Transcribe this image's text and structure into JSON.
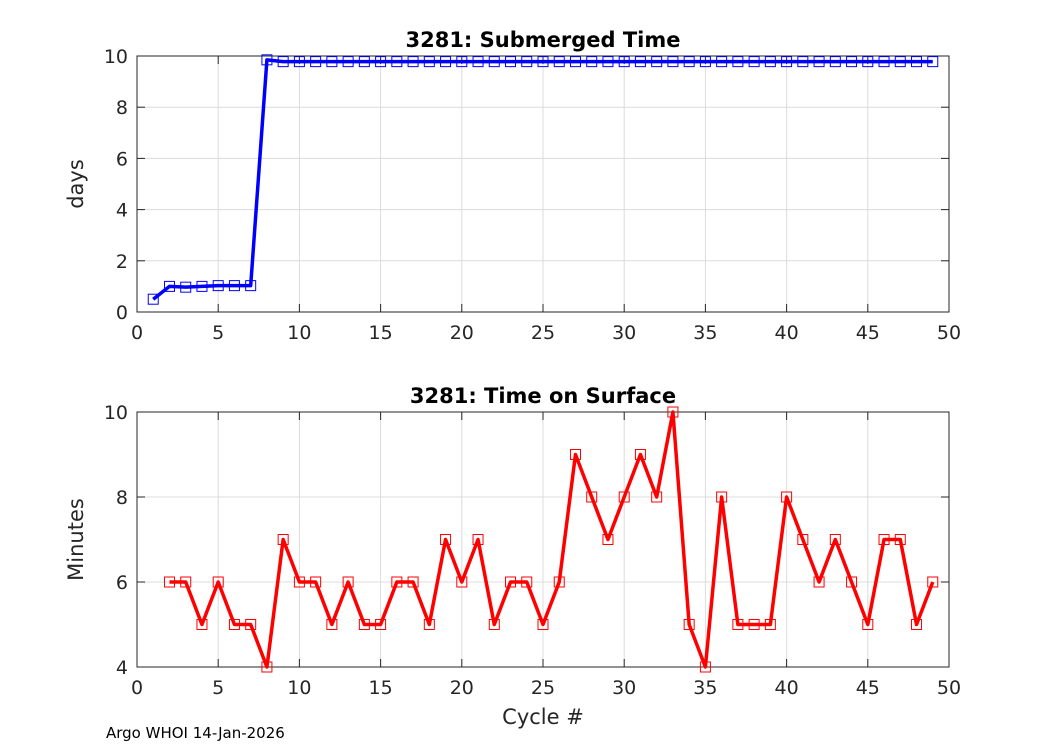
{
  "chart_data": [
    {
      "type": "line",
      "title": "3281: Submerged Time",
      "xlabel": "",
      "ylabel": "days",
      "xlim": [
        0,
        50
      ],
      "ylim": [
        0,
        10
      ],
      "xticks": [
        0,
        5,
        10,
        15,
        20,
        25,
        30,
        35,
        40,
        45,
        50
      ],
      "yticks": [
        0,
        2,
        4,
        6,
        8,
        10
      ],
      "grid": true,
      "color": "#0000ff",
      "marker": "square",
      "x": [
        1,
        2,
        3,
        4,
        5,
        6,
        7,
        8,
        9,
        10,
        11,
        12,
        13,
        14,
        15,
        16,
        17,
        18,
        19,
        20,
        21,
        22,
        23,
        24,
        25,
        26,
        27,
        28,
        29,
        30,
        31,
        32,
        33,
        34,
        35,
        36,
        37,
        38,
        39,
        40,
        41,
        42,
        43,
        44,
        45,
        46,
        47,
        48,
        49
      ],
      "y": [
        0.5,
        1.0,
        0.97,
        1.0,
        1.03,
        1.03,
        1.03,
        9.85,
        9.78,
        9.78,
        9.78,
        9.78,
        9.78,
        9.78,
        9.78,
        9.78,
        9.78,
        9.78,
        9.78,
        9.78,
        9.78,
        9.78,
        9.78,
        9.78,
        9.78,
        9.78,
        9.78,
        9.78,
        9.78,
        9.78,
        9.78,
        9.78,
        9.78,
        9.78,
        9.78,
        9.78,
        9.78,
        9.78,
        9.78,
        9.78,
        9.78,
        9.78,
        9.78,
        9.78,
        9.78,
        9.78,
        9.78,
        9.78,
        9.78
      ]
    },
    {
      "type": "line",
      "title": "3281: Time on Surface",
      "xlabel": "Cycle #",
      "ylabel": "Minutes",
      "xlim": [
        0,
        50
      ],
      "ylim": [
        4,
        10
      ],
      "xticks": [
        0,
        5,
        10,
        15,
        20,
        25,
        30,
        35,
        40,
        45,
        50
      ],
      "yticks": [
        4,
        6,
        8,
        10
      ],
      "grid": true,
      "color": "#ff0000",
      "marker": "square",
      "x": [
        2,
        3,
        4,
        5,
        6,
        7,
        8,
        9,
        10,
        11,
        12,
        13,
        14,
        15,
        16,
        17,
        18,
        19,
        20,
        21,
        22,
        23,
        24,
        25,
        26,
        27,
        28,
        29,
        30,
        31,
        32,
        33,
        34,
        35,
        36,
        37,
        38,
        39,
        40,
        41,
        42,
        43,
        44,
        45,
        46,
        47,
        48,
        49
      ],
      "y": [
        6,
        6,
        5,
        6,
        5,
        5,
        4,
        7,
        6,
        6,
        5,
        6,
        5,
        5,
        6,
        6,
        5,
        7,
        6,
        7,
        5,
        6,
        6,
        5,
        6,
        9,
        8,
        7,
        8,
        9,
        8,
        10,
        5,
        4,
        8,
        5,
        5,
        5,
        8,
        7,
        6,
        7,
        6,
        5,
        7,
        7,
        5,
        6
      ]
    }
  ],
  "footer": "Argo WHOI 14-Jan-2026"
}
